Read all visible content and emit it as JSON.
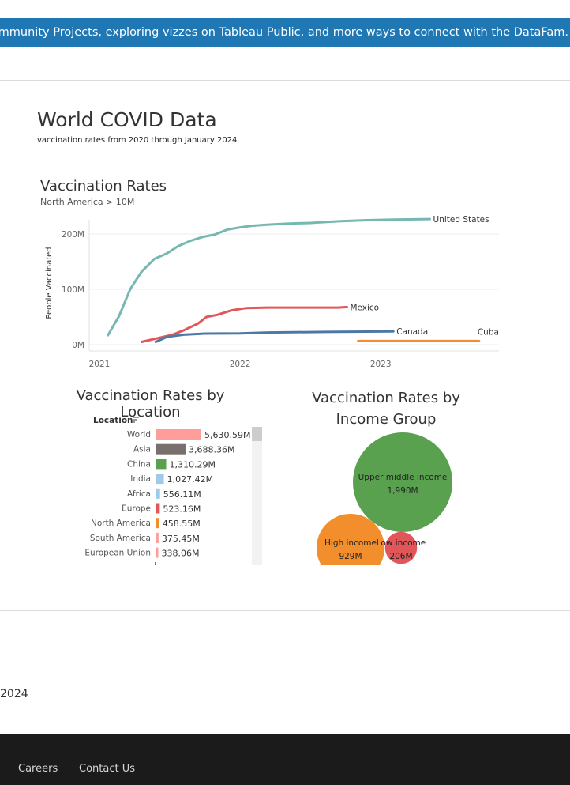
{
  "banner": {
    "text": "eau Community Projects, exploring vizzes on Tableau Public, and more ways to connect with the DataFam."
  },
  "dashboard": {
    "title": "World COVID Data",
    "subtitle": "vaccination rates from 2020 through January 2024"
  },
  "colors": {
    "banner": "#1f77b4",
    "united_states": "#76b7b2",
    "mexico": "#e15759",
    "canada": "#4e79a7",
    "cuba": "#f28e2b",
    "footer": "#1b1b1b"
  },
  "chart_data": [
    {
      "type": "line",
      "title": "Vaccination Rates",
      "subtitle": "North America > 10M",
      "ylabel": "People Vaccinated",
      "xlabel": "",
      "ylim": [
        0,
        240
      ],
      "xlim": [
        2021.0,
        2023.83
      ],
      "x_ticks": [
        "2021",
        "2022",
        "2023"
      ],
      "y_ticks": [
        "0M",
        "100M",
        "200M"
      ],
      "grid": true,
      "series": [
        {
          "name": "United States",
          "color": "#76b7b2",
          "points": [
            [
              2021.06,
              17
            ],
            [
              2021.14,
              52
            ],
            [
              2021.22,
              101
            ],
            [
              2021.3,
              132
            ],
            [
              2021.39,
              155
            ],
            [
              2021.48,
              165
            ],
            [
              2021.56,
              178
            ],
            [
              2021.65,
              188
            ],
            [
              2021.74,
              195
            ],
            [
              2021.82,
              199
            ],
            [
              2021.91,
              208
            ],
            [
              2022.0,
              212
            ],
            [
              2022.09,
              215
            ],
            [
              2022.2,
              217
            ],
            [
              2022.35,
              219
            ],
            [
              2022.5,
              220
            ],
            [
              2022.7,
              223
            ],
            [
              2022.9,
              225
            ],
            [
              2023.1,
              226
            ],
            [
              2023.35,
              227
            ]
          ]
        },
        {
          "name": "Mexico",
          "color": "#e15759",
          "points": [
            [
              2021.3,
              5
            ],
            [
              2021.42,
              12
            ],
            [
              2021.52,
              18
            ],
            [
              2021.6,
              26
            ],
            [
              2021.7,
              38
            ],
            [
              2021.76,
              50
            ],
            [
              2021.84,
              54
            ],
            [
              2021.94,
              62
            ],
            [
              2022.04,
              66
            ],
            [
              2022.2,
              67
            ],
            [
              2022.45,
              67
            ],
            [
              2022.7,
              67
            ],
            [
              2022.76,
              68
            ]
          ]
        },
        {
          "name": "Canada",
          "color": "#4e79a7",
          "points": [
            [
              2021.4,
              5
            ],
            [
              2021.48,
              14
            ],
            [
              2021.6,
              18
            ],
            [
              2021.75,
              20
            ],
            [
              2022.0,
              20.5
            ],
            [
              2022.2,
              22
            ],
            [
              2022.6,
              23
            ],
            [
              2023.09,
              24
            ]
          ]
        },
        {
          "name": "Cuba",
          "color": "#f28e2b",
          "points": [
            [
              2022.84,
              6.5
            ],
            [
              2023.3,
              6.5
            ],
            [
              2023.7,
              6.5
            ]
          ]
        }
      ]
    },
    {
      "type": "bar",
      "title": "Vaccination Rates by Location",
      "header": "Location",
      "categories": [
        "World",
        "Asia",
        "China",
        "India",
        "Africa",
        "Europe",
        "North America",
        "South America",
        "European Union"
      ],
      "values": [
        5630.59,
        3688.36,
        1310.29,
        1027.42,
        556.11,
        523.16,
        458.55,
        375.45,
        338.06
      ],
      "labels": [
        "5,630.59M",
        "3,688.36M",
        "1,310.29M",
        "1,027.42M",
        "556.11M",
        "523.16M",
        "458.55M",
        "375.45M",
        "338.06M"
      ],
      "colors": [
        "#ff9d9a",
        "#79706e",
        "#59a14f",
        "#a0cbe8",
        "#a0cbe8",
        "#e15759",
        "#f28e2b",
        "#ff9d9a",
        "#ff9d9a"
      ]
    },
    {
      "type": "bubble",
      "title": "Vaccination Rates by Income Group",
      "categories": [
        "Upper middle income",
        "High income",
        "Low income"
      ],
      "values": [
        1990,
        929,
        206
      ],
      "labels": [
        "1,990M",
        "929M",
        "206M"
      ],
      "colors": [
        "#59a14f",
        "#f28e2b",
        "#e15759"
      ]
    }
  ],
  "footer": {
    "year": "2024",
    "links": [
      "Careers",
      "Contact Us"
    ]
  }
}
